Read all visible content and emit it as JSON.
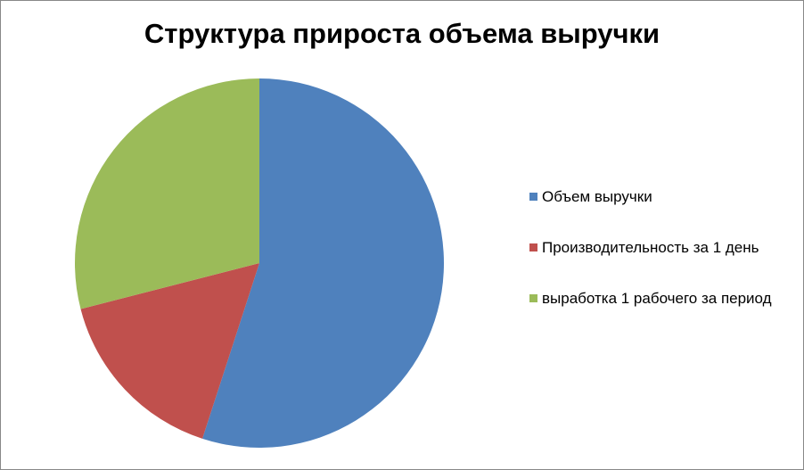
{
  "chart_data": {
    "type": "pie",
    "title": "Структура прироста объема выручки",
    "categories": [
      "Объем выручки",
      "Производительность за 1 день",
      "выработка 1 рабочего за период"
    ],
    "values": [
      55,
      16,
      29
    ],
    "colors": [
      "#4f81bd",
      "#c0504d",
      "#9bbb59"
    ],
    "legend": "right"
  }
}
